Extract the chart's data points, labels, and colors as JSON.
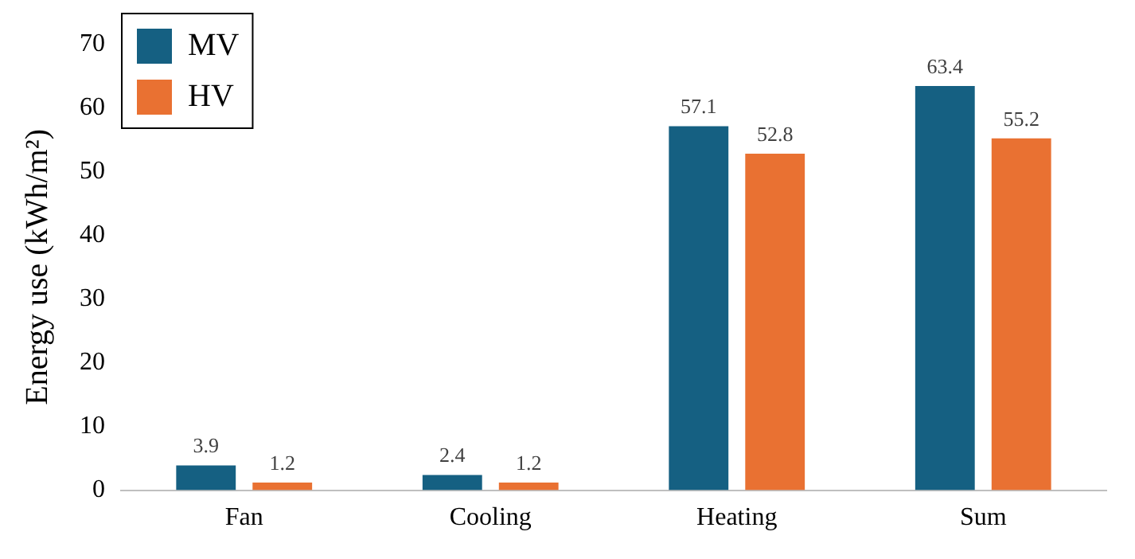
{
  "chart_data": {
    "type": "bar",
    "ylabel": "Energy use (kWh/m²)",
    "categories": [
      "Fan",
      "Cooling",
      "Heating",
      "Sum"
    ],
    "series": [
      {
        "name": "MV",
        "color": "#156082",
        "values": [
          3.9,
          2.4,
          57.1,
          63.4
        ]
      },
      {
        "name": "HV",
        "color": "#e97132",
        "values": [
          1.2,
          1.2,
          52.8,
          55.2
        ]
      }
    ],
    "ylim": [
      0,
      70
    ],
    "yticks": [
      0,
      10,
      20,
      30,
      40,
      50,
      60,
      70
    ],
    "grid": false,
    "legend": "top left",
    "data_labels": true
  }
}
